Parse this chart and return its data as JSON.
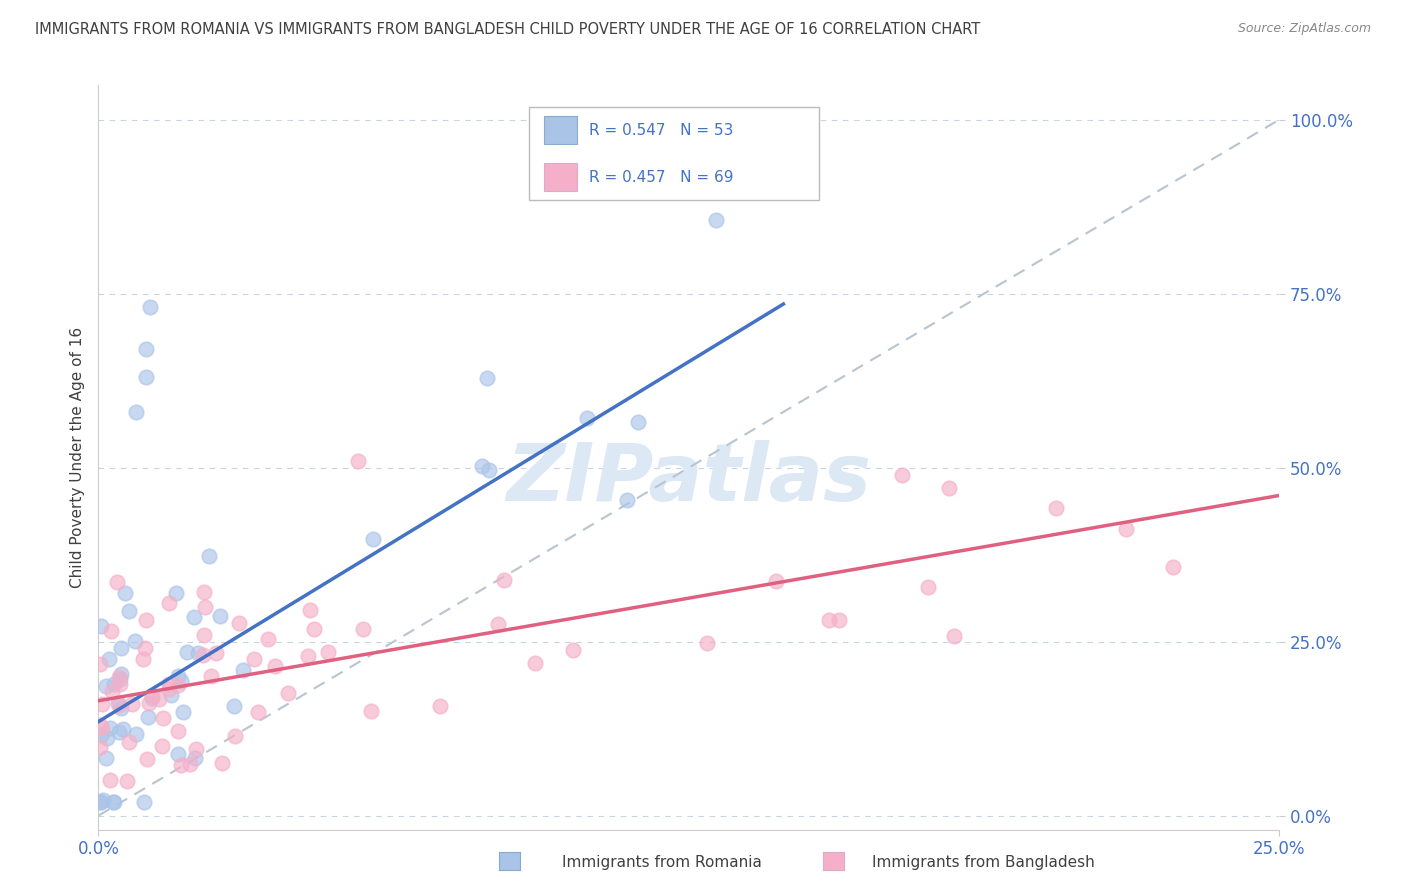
{
  "title": "IMMIGRANTS FROM ROMANIA VS IMMIGRANTS FROM BANGLADESH CHILD POVERTY UNDER THE AGE OF 16 CORRELATION CHART",
  "source": "Source: ZipAtlas.com",
  "ylabel": "Child Poverty Under the Age of 16",
  "xlabel_romania": "Immigrants from Romania",
  "xlabel_bangladesh": "Immigrants from Bangladesh",
  "xlim": [
    0.0,
    0.25
  ],
  "ylim": [
    -0.02,
    1.05
  ],
  "ytick_vals": [
    0.0,
    0.25,
    0.5,
    0.75,
    1.0
  ],
  "ytick_labels": [
    "0.0%",
    "25.0%",
    "50.0%",
    "75.0%",
    "100.0%"
  ],
  "xtick_vals": [
    0.0,
    0.25
  ],
  "xtick_labels": [
    "0.0%",
    "25.0%"
  ],
  "romania_R": 0.547,
  "romania_N": 53,
  "bangladesh_R": 0.457,
  "bangladesh_N": 69,
  "romania_color": "#aac4e8",
  "bangladesh_color": "#f5afc8",
  "romania_line_color": "#4472c4",
  "bangladesh_line_color": "#e06080",
  "diagonal_color": "#b8c4d0",
  "background_color": "#ffffff",
  "grid_color": "#c8d4e4",
  "title_color": "#404040",
  "tick_color": "#4472c4",
  "watermark_color": "#dde8f5",
  "watermark": "ZIPatlas",
  "ro_line_x0": 0.0,
  "ro_line_y0": 0.135,
  "ro_line_x1": 0.145,
  "ro_line_y1": 0.735,
  "bd_line_x0": 0.0,
  "bd_line_y0": 0.165,
  "bd_line_x1": 0.25,
  "bd_line_y1": 0.46
}
